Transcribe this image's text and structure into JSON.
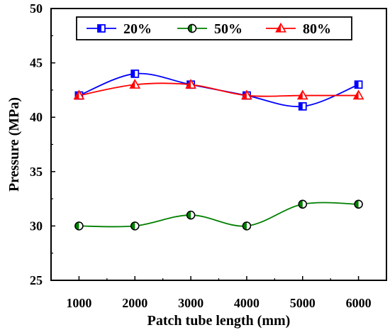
{
  "chart_data": {
    "type": "line",
    "xlabel": "Patch tube length (mm)",
    "ylabel": "Pressure (MPa)",
    "x": [
      1000,
      2000,
      3000,
      4000,
      5000,
      6000
    ],
    "xticks": [
      "1000",
      "2000",
      "3000",
      "4000",
      "5000",
      "6000"
    ],
    "xlim": [
      500,
      6500
    ],
    "ylim": [
      25,
      50
    ],
    "yticks": [
      "25",
      "30",
      "35",
      "40",
      "45",
      "50"
    ],
    "grid": false,
    "legend_position": "top-center",
    "series": [
      {
        "name": "20%",
        "values": [
          42,
          44,
          43,
          42,
          41,
          43
        ],
        "color": "#0000ff",
        "marker": "half-square"
      },
      {
        "name": "50%",
        "values": [
          30,
          30,
          31,
          30,
          32,
          32
        ],
        "color": "#008000",
        "marker": "half-circle"
      },
      {
        "name": "80%",
        "values": [
          42,
          43,
          43,
          42,
          42,
          42
        ],
        "color": "#ff0000",
        "marker": "half-triangle"
      }
    ]
  }
}
